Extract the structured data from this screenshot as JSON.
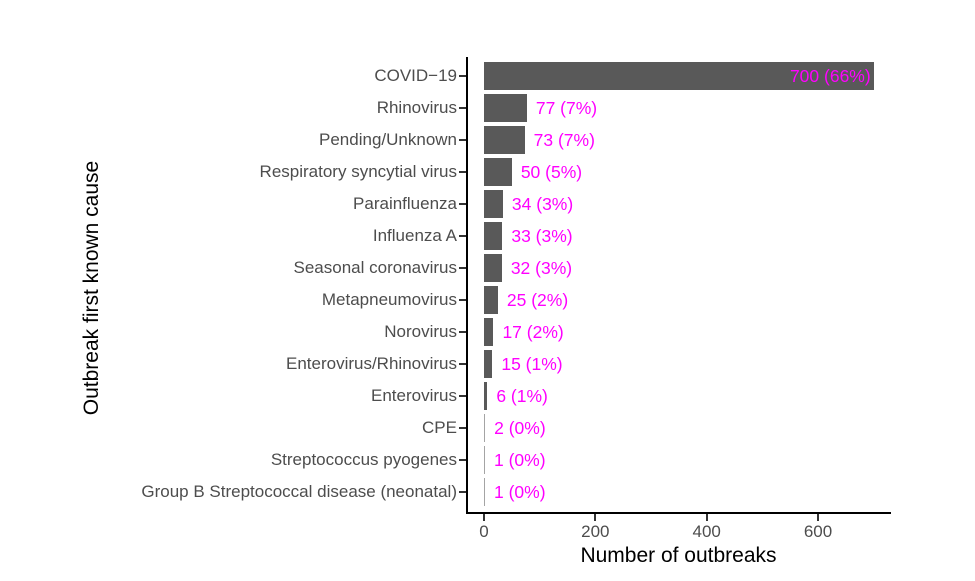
{
  "chart_data": {
    "type": "bar",
    "orientation": "horizontal",
    "title": "",
    "xlabel": "Number of outbreaks",
    "ylabel": "Outbreak first known cause",
    "categories": [
      "COVID−19",
      "Rhinovirus",
      "Pending/Unknown",
      "Respiratory syncytial virus",
      "Parainfluenza",
      "Influenza A",
      "Seasonal coronavirus",
      "Metapneumovirus",
      "Norovirus",
      "Enterovirus/Rhinovirus",
      "Enterovirus",
      "CPE",
      "Streptococcus pyogenes",
      "Group B Streptococcal disease (neonatal)"
    ],
    "values": [
      700,
      77,
      73,
      50,
      34,
      33,
      32,
      25,
      17,
      15,
      6,
      2,
      1,
      1
    ],
    "bar_labels": [
      "700 (66%)",
      "77 (7%)",
      "73 (7%)",
      "50 (5%)",
      "34 (3%)",
      "33 (3%)",
      "32 (3%)",
      "25 (2%)",
      "17 (2%)",
      "15 (1%)",
      "6 (1%)",
      "2 (0%)",
      "1 (0%)",
      "1 (0%)"
    ],
    "x_ticks": [
      0,
      200,
      400,
      600
    ],
    "xlim": [
      0,
      735
    ],
    "grid": false,
    "legend": false,
    "bar_color": "#595959",
    "value_label_color": "#FF00FF",
    "axis_text_color": "#4d4d4d",
    "axis_line_color": "#000000",
    "first_bar_label_position": "inside"
  }
}
